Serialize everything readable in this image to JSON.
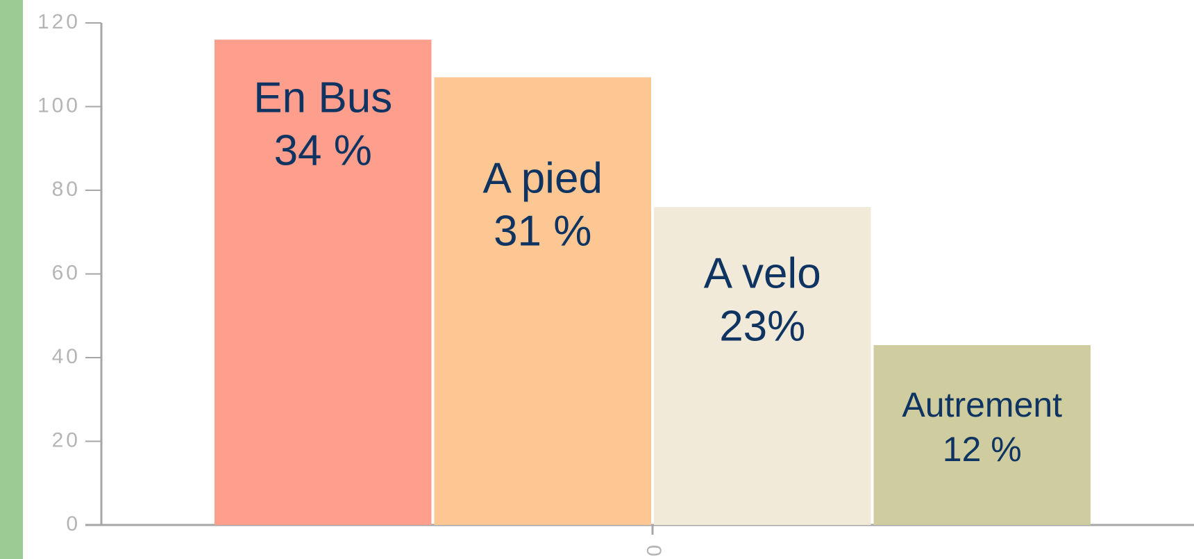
{
  "chart_data": {
    "type": "bar",
    "categories": [
      "En Bus",
      "A pied",
      "A velo",
      "Autrement"
    ],
    "values": [
      116,
      107,
      76,
      43
    ],
    "share_labels": [
      "34 %",
      "31 %",
      "23%",
      "12 %"
    ],
    "colors": [
      "#fe9f8e",
      "#fdc794",
      "#f2ead8",
      "#cfcd9f"
    ],
    "x_tick_label": "0",
    "ylim": [
      0,
      120
    ],
    "yticks": [
      0,
      20,
      40,
      60,
      80,
      100,
      120
    ]
  }
}
